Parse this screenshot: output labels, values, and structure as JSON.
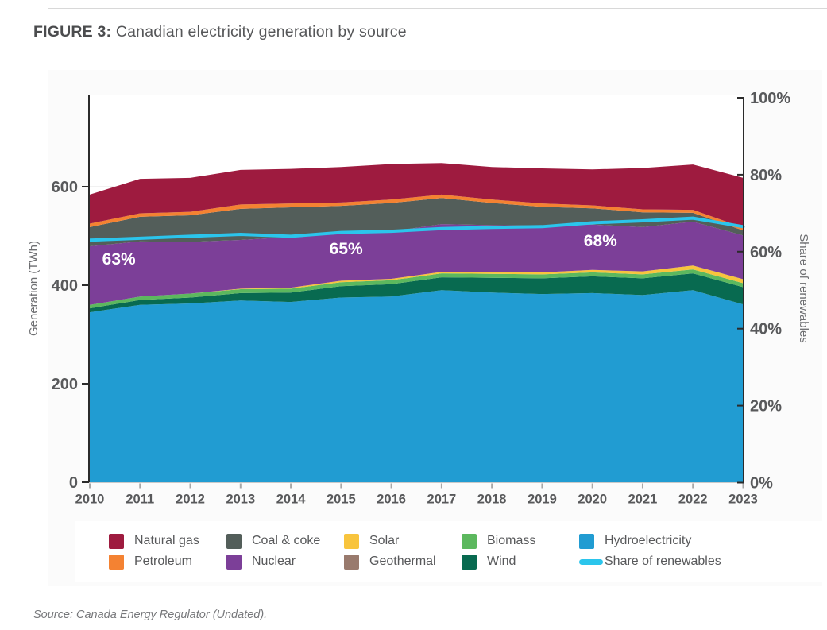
{
  "page": {
    "title_prefix": "FIGURE 3:",
    "title": " Canadian electricity generation by source",
    "source": "Source: Canada Energy Regulator (Undated)."
  },
  "chart_data": {
    "type": "area",
    "stacked": true,
    "title": "Canadian electricity generation by source",
    "x": [
      2010,
      2011,
      2012,
      2013,
      2014,
      2015,
      2016,
      2017,
      2018,
      2019,
      2020,
      2021,
      2022,
      2023
    ],
    "series": [
      {
        "name": "Hydroelectricity",
        "color": "#219CD2",
        "values": [
          345,
          360,
          363,
          369,
          366,
          375,
          377,
          390,
          385,
          382,
          384,
          380,
          390,
          361
        ]
      },
      {
        "name": "Wind",
        "color": "#086A50",
        "values": [
          8,
          10,
          12,
          15,
          19,
          23,
          25,
          26,
          30,
          32,
          34,
          34,
          34,
          35
        ]
      },
      {
        "name": "Biomass",
        "color": "#5CB85E",
        "values": [
          7,
          7,
          8,
          8,
          8,
          8,
          8,
          8,
          8,
          8,
          8,
          8,
          8,
          8
        ]
      },
      {
        "name": "Geothermal",
        "color": "#997A6D",
        "values": [
          0,
          0,
          0,
          0,
          0,
          0,
          0,
          0,
          0,
          0,
          0,
          0,
          0,
          0
        ]
      },
      {
        "name": "Solar",
        "color": "#F8C43D",
        "values": [
          0,
          0,
          0,
          1,
          2,
          3,
          3,
          3,
          4,
          4,
          5,
          6,
          8,
          8
        ]
      },
      {
        "name": "Nuclear",
        "color": "#7C3F98",
        "values": [
          119,
          112,
          105,
          99,
          103,
          95,
          96,
          97,
          95,
          95,
          92,
          90,
          89,
          89
        ]
      },
      {
        "name": "Coal & coke",
        "color": "#535E5A",
        "values": [
          39,
          50,
          54,
          63,
          60,
          57,
          58,
          53,
          45,
          38,
          33,
          30,
          18,
          10
        ]
      },
      {
        "name": "Petroleum",
        "color": "#F48232",
        "values": [
          7,
          7,
          7,
          9,
          8,
          7,
          7,
          7,
          7,
          7,
          6,
          6,
          6,
          6
        ]
      },
      {
        "name": "Natural gas",
        "color": "#9E1B3F",
        "values": [
          59,
          70,
          69,
          70,
          70,
          72,
          72,
          64,
          66,
          71,
          73,
          84,
          92,
          101
        ]
      }
    ],
    "line_series": {
      "name": "Share of renewables",
      "color": "#2BC5EC",
      "axis": "right",
      "values": [
        63,
        63.5,
        64,
        64.5,
        64,
        65,
        65.3,
        66,
        66.3,
        66.5,
        67.5,
        68,
        68.7,
        66.5
      ]
    },
    "left_axis": {
      "label": "Generation (TWh)",
      "ticks": [
        0,
        200,
        400,
        600
      ],
      "range": [
        0,
        787
      ],
      "grid": true
    },
    "right_axis": {
      "label": "Share of renewables",
      "ticks": [
        0,
        20,
        40,
        60,
        80,
        100
      ],
      "tick_suffix": "%",
      "range": [
        0,
        100
      ]
    },
    "annotations": [
      {
        "text": "63%",
        "year": 2010.58,
        "twh": 442
      },
      {
        "text": "65%",
        "year": 2015.1,
        "twh": 463
      },
      {
        "text": "68%",
        "year": 2020.16,
        "twh": 479
      }
    ],
    "legend": [
      {
        "name": "Natural gas",
        "color": "#9E1B3F",
        "type": "box"
      },
      {
        "name": "Petroleum",
        "color": "#F48232",
        "type": "box"
      },
      {
        "name": "Coal & coke",
        "color": "#535E5A",
        "type": "box"
      },
      {
        "name": "Nuclear",
        "color": "#7C3F98",
        "type": "box"
      },
      {
        "name": "Solar",
        "color": "#F8C43D",
        "type": "box"
      },
      {
        "name": "Geothermal",
        "color": "#997A6D",
        "type": "box"
      },
      {
        "name": "Biomass",
        "color": "#5CB85E",
        "type": "box"
      },
      {
        "name": "Wind",
        "color": "#086A50",
        "type": "box"
      },
      {
        "name": "Hydroelectricity",
        "color": "#219CD2",
        "type": "box"
      },
      {
        "name": "Share of renewables",
        "color": "#2BC5EC",
        "type": "line"
      }
    ],
    "colors": {
      "axis_line": "#2b2b2b",
      "tick_text": "#58595b",
      "axis_title": "#6d6e71",
      "grid": "#e3e3e3"
    }
  }
}
